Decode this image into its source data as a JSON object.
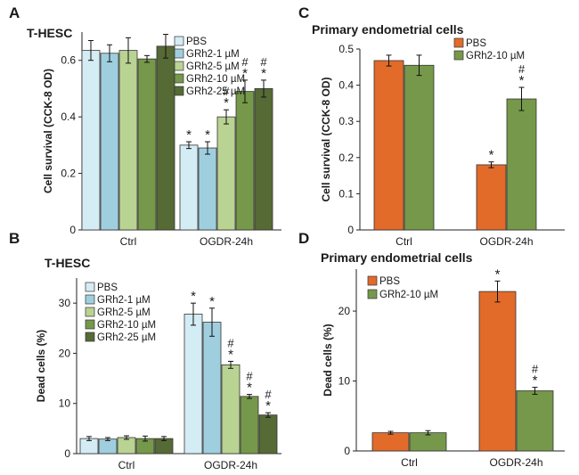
{
  "colors": {
    "PBS": "#d4ecf3",
    "GRh2-1 µM": "#9fcfde",
    "GRh2-5 µM": "#b9d393",
    "GRh2-10 µM": "#76984a",
    "GRh2-25 µM": "#566a35",
    "PBS_primary": "#e26b2a",
    "GRh2-10 µM_primary": "#76984a"
  },
  "chart_data": [
    {
      "panel": "A",
      "title": "T-HESC",
      "type": "bar",
      "ylabel": "Cell survival (CCK-8 OD)",
      "ylim": [
        0,
        0.7
      ],
      "yticks": [
        0,
        0.2,
        0.4,
        0.6
      ],
      "legend_position": "top-right",
      "categories": [
        "Ctrl",
        "OGDR-24h"
      ],
      "series": [
        {
          "name": "PBS",
          "values": [
            0.635,
            0.3
          ],
          "errors": [
            0.035,
            0.012
          ],
          "marks": [
            "",
            "*"
          ]
        },
        {
          "name": "GRh2-1 µM",
          "values": [
            0.625,
            0.29
          ],
          "errors": [
            0.03,
            0.022
          ],
          "marks": [
            "",
            "*"
          ]
        },
        {
          "name": "GRh2-5 µM",
          "values": [
            0.635,
            0.4
          ],
          "errors": [
            0.045,
            0.025
          ],
          "marks": [
            "",
            "*#"
          ]
        },
        {
          "name": "GRh2-10 µM",
          "values": [
            0.605,
            0.49
          ],
          "errors": [
            0.012,
            0.04
          ],
          "marks": [
            "",
            "*#"
          ]
        },
        {
          "name": "GRh2-25 µM",
          "values": [
            0.65,
            0.5
          ],
          "errors": [
            0.042,
            0.03
          ],
          "marks": [
            "",
            "*#"
          ]
        }
      ]
    },
    {
      "panel": "C",
      "title": "Primary endometrial cells",
      "type": "bar",
      "ylabel": "Cell survival (CCK-8 OD)",
      "ylim": [
        0,
        0.5
      ],
      "yticks": [
        0,
        0.1,
        0.2,
        0.3,
        0.4,
        0.5
      ],
      "legend_position": "top-left",
      "categories": [
        "Ctrl",
        "OGDR-24h"
      ],
      "series": [
        {
          "name": "PBS",
          "values": [
            0.468,
            0.18
          ],
          "errors": [
            0.015,
            0.008
          ],
          "marks": [
            "",
            "*"
          ]
        },
        {
          "name": "GRh2-10 µM",
          "values": [
            0.455,
            0.362
          ],
          "errors": [
            0.028,
            0.032
          ],
          "marks": [
            "",
            "*#"
          ]
        }
      ]
    },
    {
      "panel": "B",
      "title": "T-HESC",
      "type": "bar",
      "ylabel": "Dead cells (%)",
      "ylim": [
        0,
        35
      ],
      "yticks": [
        0,
        10,
        20,
        30
      ],
      "legend_position": "top-left",
      "categories": [
        "Ctrl",
        "OGDR-24h"
      ],
      "series": [
        {
          "name": "PBS",
          "values": [
            3.0,
            27.8
          ],
          "errors": [
            0.4,
            2.2
          ],
          "marks": [
            "",
            "*"
          ]
        },
        {
          "name": "GRh2-1 µM",
          "values": [
            2.9,
            26.2
          ],
          "errors": [
            0.3,
            2.8
          ],
          "marks": [
            "",
            "*"
          ]
        },
        {
          "name": "GRh2-5 µM",
          "values": [
            3.2,
            17.7
          ],
          "errors": [
            0.35,
            0.7
          ],
          "marks": [
            "",
            "*#"
          ]
        },
        {
          "name": "GRh2-10 µM",
          "values": [
            3.0,
            11.4
          ],
          "errors": [
            0.5,
            0.4
          ],
          "marks": [
            "",
            "*#"
          ]
        },
        {
          "name": "GRh2-25 µM",
          "values": [
            3.0,
            7.7
          ],
          "errors": [
            0.4,
            0.45
          ],
          "marks": [
            "",
            "*#"
          ]
        }
      ]
    },
    {
      "panel": "D",
      "title": "Primary endometrial cells",
      "type": "bar",
      "ylabel": "Dead cells (%)",
      "ylim": [
        0,
        26
      ],
      "yticks": [
        0,
        10,
        20
      ],
      "legend_position": "top-left",
      "categories": [
        "Ctrl",
        "OGDR-24h"
      ],
      "series": [
        {
          "name": "PBS",
          "values": [
            2.6,
            22.8
          ],
          "errors": [
            0.2,
            1.5
          ],
          "marks": [
            "",
            "*"
          ]
        },
        {
          "name": "GRh2-10 µM",
          "values": [
            2.6,
            8.6
          ],
          "errors": [
            0.3,
            0.5
          ],
          "marks": [
            "",
            "*#"
          ]
        }
      ]
    }
  ]
}
